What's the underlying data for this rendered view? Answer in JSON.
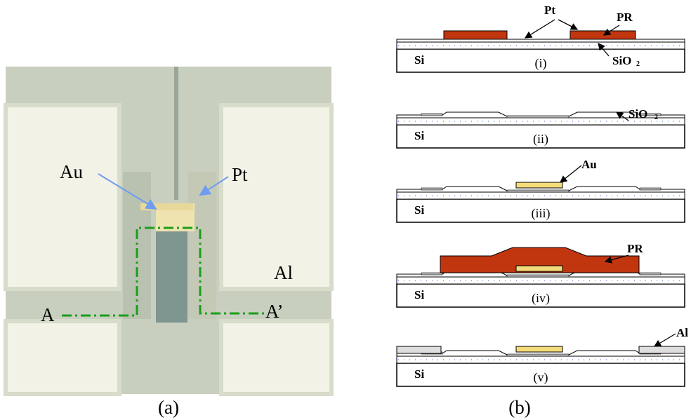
{
  "panel_a": {
    "labels": {
      "au": "Au",
      "pt": "Pt",
      "al": "Al",
      "a": "A",
      "a_prime": "A’"
    },
    "caption": "(a)"
  },
  "panel_b": {
    "caption": "(b)",
    "steps": [
      {
        "number": "(i)",
        "substrate": "Si",
        "pt": "Pt",
        "pr": "PR",
        "oxide": "SiO",
        "oxide_sub": "2"
      },
      {
        "number": "(ii)",
        "substrate": "Si",
        "oxide": "SiO",
        "oxide_sub": "2"
      },
      {
        "number": "(iii)",
        "substrate": "Si",
        "au": "Au"
      },
      {
        "number": "(iv)",
        "substrate": "Si",
        "pr": "PR"
      },
      {
        "number": "(v)",
        "substrate": "Si",
        "al": "Al"
      }
    ]
  }
}
